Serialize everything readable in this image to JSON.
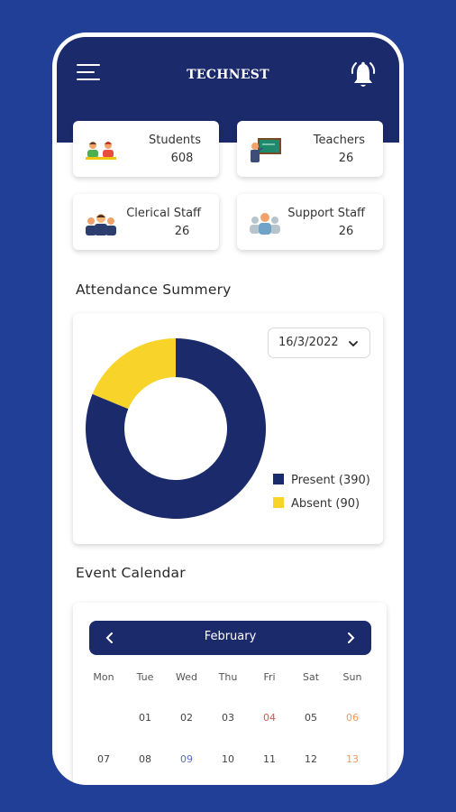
{
  "header": {
    "title": "TECHNEST",
    "menu_icon": "hamburger-menu-icon",
    "notification_icon": "bell-icon"
  },
  "stats": [
    {
      "label": "Students",
      "value": "608",
      "icon": "students-icon"
    },
    {
      "label": "Teachers",
      "value": "26",
      "icon": "teacher-board-icon"
    },
    {
      "label": "Clerical Staff",
      "value": "26",
      "icon": "clerical-staff-icon"
    },
    {
      "label": "Support Staff",
      "value": "26",
      "icon": "support-staff-icon"
    }
  ],
  "attendance": {
    "title": "Attendance Summery",
    "date": "16/3/2022",
    "present_label": "Present (390)",
    "absent_label": "Absent  (90)"
  },
  "chart_data": {
    "type": "pie",
    "labels": [
      "Present",
      "Absent"
    ],
    "values": [
      390,
      90
    ],
    "colors": [
      "#1b2a6b",
      "#f8d42a"
    ]
  },
  "calendar": {
    "title": "Event Calendar",
    "month": "February",
    "weekdays": [
      "Mon",
      "Tue",
      "Wed",
      "Thu",
      "Fri",
      "Sat",
      "Sun"
    ],
    "weeks": [
      [
        "",
        "01",
        "02",
        "03",
        "04",
        "05",
        "06"
      ],
      [
        "07",
        "08",
        "09",
        "10",
        "11",
        "12",
        "13"
      ]
    ],
    "highlighted": {
      "04": "#e05252",
      "06": "#f29a5a",
      "09": "#5b6bc8",
      "13": "#f29a5a"
    }
  }
}
